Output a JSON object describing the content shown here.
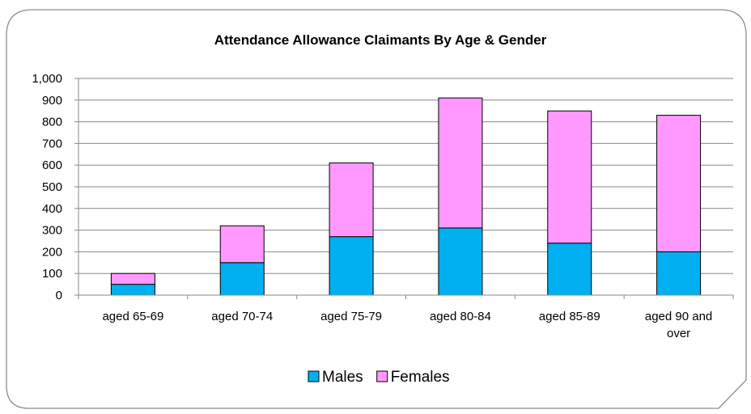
{
  "chart_data": {
    "type": "bar",
    "stacked": true,
    "title": "Attendance Allowance Claimants By Age & Gender",
    "xlabel": "",
    "ylabel": "",
    "ylim": [
      0,
      1000
    ],
    "yticks": [
      0,
      100,
      200,
      300,
      400,
      500,
      600,
      700,
      800,
      900,
      1000
    ],
    "ytick_labels": [
      "0",
      "100",
      "200",
      "300",
      "400",
      "500",
      "600",
      "700",
      "800",
      "900",
      "1,000"
    ],
    "grid": true,
    "legend": "bottom",
    "categories": [
      [
        "aged 65-69"
      ],
      [
        "aged 70-74"
      ],
      [
        "aged 75-79"
      ],
      [
        "aged 80-84"
      ],
      [
        "aged 85-89"
      ],
      [
        "aged 90 and",
        "over"
      ]
    ],
    "series": [
      {
        "name": "Males",
        "color": "#00b0f0",
        "values": [
          50,
          150,
          270,
          310,
          240,
          200
        ]
      },
      {
        "name": "Females",
        "color": "#ff99ff",
        "values": [
          50,
          170,
          340,
          600,
          610,
          630
        ]
      }
    ]
  }
}
